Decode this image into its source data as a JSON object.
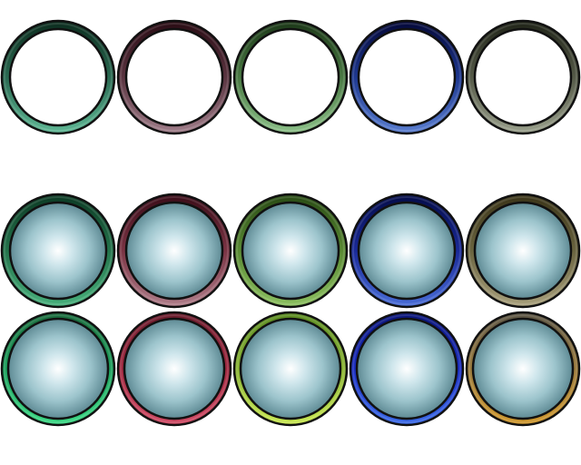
{
  "rows": [
    {
      "name": "empty-frames",
      "filled": false,
      "rings": [
        {
          "top": "#0c2c1e",
          "bottom": "#5fb895",
          "mid": "#2a6a52"
        },
        {
          "top": "#2a0c14",
          "bottom": "#a07e8a",
          "mid": "#5a3440"
        },
        {
          "top": "#1c3818",
          "bottom": "#8cc088",
          "mid": "#4a7a44"
        },
        {
          "top": "#040838",
          "bottom": "#5a7ed0",
          "mid": "#1e3890"
        },
        {
          "top": "#202418",
          "bottom": "#9aa08c",
          "mid": "#555a48"
        }
      ]
    },
    {
      "name": "thick-glass-buttons",
      "filled": true,
      "rings": [
        {
          "top": "#0c3a24",
          "bottom": "#48b07c",
          "mid": "#24744c"
        },
        {
          "top": "#3a0c18",
          "bottom": "#b07e8a",
          "mid": "#7a3444"
        },
        {
          "top": "#284a14",
          "bottom": "#8cc060",
          "mid": "#5a8a34"
        },
        {
          "top": "#040c48",
          "bottom": "#4a6ed8",
          "mid": "#1a2a98"
        },
        {
          "top": "#3a3418",
          "bottom": "#a8a07c",
          "mid": "#6a6440"
        }
      ]
    },
    {
      "name": "bright-glass-buttons",
      "filled": true,
      "rings": [
        {
          "top": "#1a6a3c",
          "bottom": "#3ad884",
          "mid": "#1ca05c"
        },
        {
          "top": "#6a1c2c",
          "bottom": "#d04a64",
          "mid": "#a02840"
        },
        {
          "top": "#5a8a20",
          "bottom": "#c8e850",
          "mid": "#8ab434"
        },
        {
          "top": "#0a1478",
          "bottom": "#3a6ae8",
          "mid": "#1a2cc0"
        },
        {
          "top": "#5a5444",
          "bottom": "#d0982c",
          "mid": "#9a7a3c"
        }
      ]
    }
  ]
}
